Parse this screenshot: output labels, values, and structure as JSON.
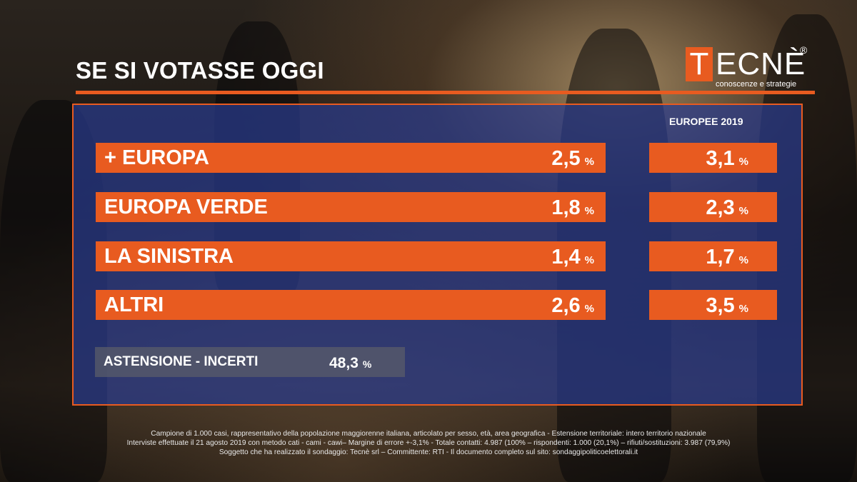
{
  "title": "SE SI VOTASSE OGGI",
  "logo": {
    "letter": "T",
    "rest": "ECNÈ",
    "reg": "®",
    "tagline": "conoscenze e strategie"
  },
  "comparison_header": "EUROPEE 2019",
  "colors": {
    "accent": "#e85b20",
    "panel": "#283a8c",
    "abstention": "#5a5c69"
  },
  "parties": [
    {
      "name": "+ EUROPA",
      "value": "2,5",
      "europee2019": "3,1"
    },
    {
      "name": "EUROPA VERDE",
      "value": "1,8",
      "europee2019": "2,3"
    },
    {
      "name": "LA SINISTRA",
      "value": "1,4",
      "europee2019": "1,7"
    },
    {
      "name": "ALTRI",
      "value": "2,6",
      "europee2019": "3,5"
    }
  ],
  "percent_sign": "%",
  "abstention": {
    "label": "ASTENSIONE - INCERTI",
    "value": "48,3"
  },
  "footnote": [
    "Campione di 1.000 casi, rappresentativo della popolazione maggiorenne italiana, articolato per sesso, età, area geografica - Estensione territoriale: intero territorio nazionale",
    "Interviste effettuate il 21 agosto 2019 con metodo cati - cami - cawi– Margine di errore +-3,1% - Totale contatti: 4.987 (100% – rispondenti: 1.000 (20,1%) – rifiuti/sostituzioni: 3.987 (79,9%)",
    "Soggetto che ha realizzato il sondaggio: Tecnè srl – Committente: RTI - Il documento completo sul sito: sondaggipoliticoelettorali.it"
  ]
}
